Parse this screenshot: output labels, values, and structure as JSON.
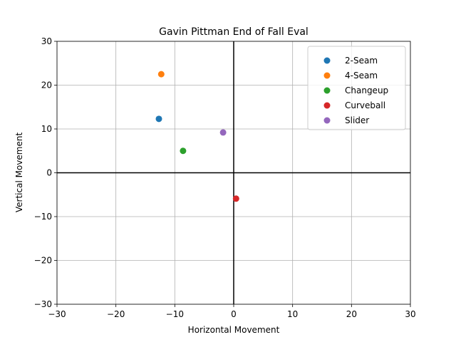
{
  "chart_data": {
    "type": "scatter",
    "title": "Gavin Pittman End of Fall Eval",
    "x_label": "Horizontal Movement",
    "y_label": "Vertical Movement",
    "series": [
      {
        "name": "2-Seam",
        "color": "#1f77b4",
        "x": [
          -12.7
        ],
        "values": [
          12.3
        ]
      },
      {
        "name": "4-Seam",
        "color": "#ff7f0e",
        "x": [
          -12.3
        ],
        "values": [
          22.5
        ]
      },
      {
        "name": "Changeup",
        "color": "#2ca02c",
        "x": [
          -8.6
        ],
        "values": [
          5.0
        ]
      },
      {
        "name": "Curveball",
        "color": "#d62728",
        "x": [
          0.4
        ],
        "values": [
          -5.9
        ]
      },
      {
        "name": "Slider",
        "color": "#9467bd",
        "x": [
          -1.8
        ],
        "values": [
          9.2
        ]
      }
    ],
    "xlim": [
      -30,
      30
    ],
    "ylim": [
      -30,
      30
    ],
    "xticks": [
      {
        "value": -30,
        "label": "−30"
      },
      {
        "value": -20,
        "label": "−20"
      },
      {
        "value": -10,
        "label": "−10"
      },
      0,
      10,
      20,
      30
    ],
    "yticks": [
      {
        "value": -30,
        "label": "−30"
      },
      {
        "value": -20,
        "label": "−20"
      },
      {
        "value": -10,
        "label": "−10"
      },
      0,
      10,
      20,
      30
    ],
    "grid": true,
    "legend": "upper right"
  }
}
